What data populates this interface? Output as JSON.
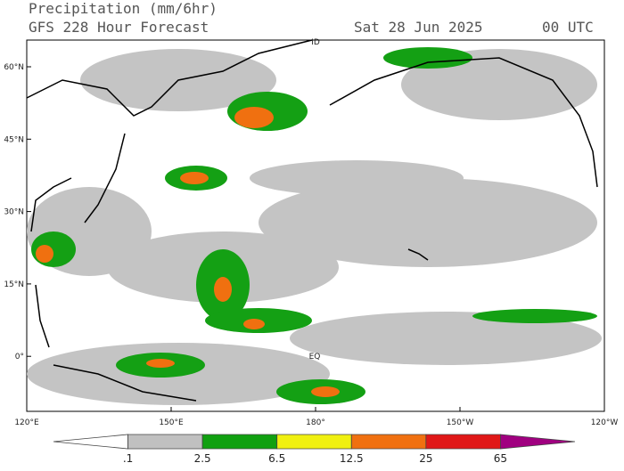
{
  "header": {
    "title": "Precipitation (mm/6hr)",
    "subtitle": "GFS 228 Hour Forecast",
    "date": "Sat 28 Jun 2025",
    "time": "00 UTC"
  },
  "map": {
    "lat_labels": [
      "60°N",
      "45°N",
      "30°N",
      "15°N",
      "0°"
    ],
    "lon_labels": [
      "120°E",
      "150°E",
      "180°",
      "150°W",
      "120°W"
    ],
    "annotations": [
      "EQ",
      "ID"
    ]
  },
  "colorbar": {
    "labels": [
      ".1",
      "2.5",
      "6.5",
      "12.5",
      "25",
      "65"
    ],
    "colors": [
      "#ffffff",
      "#c0c0c0",
      "#10a010",
      "#f0f010",
      "#f07010",
      "#e01818",
      "#a00080"
    ]
  }
}
